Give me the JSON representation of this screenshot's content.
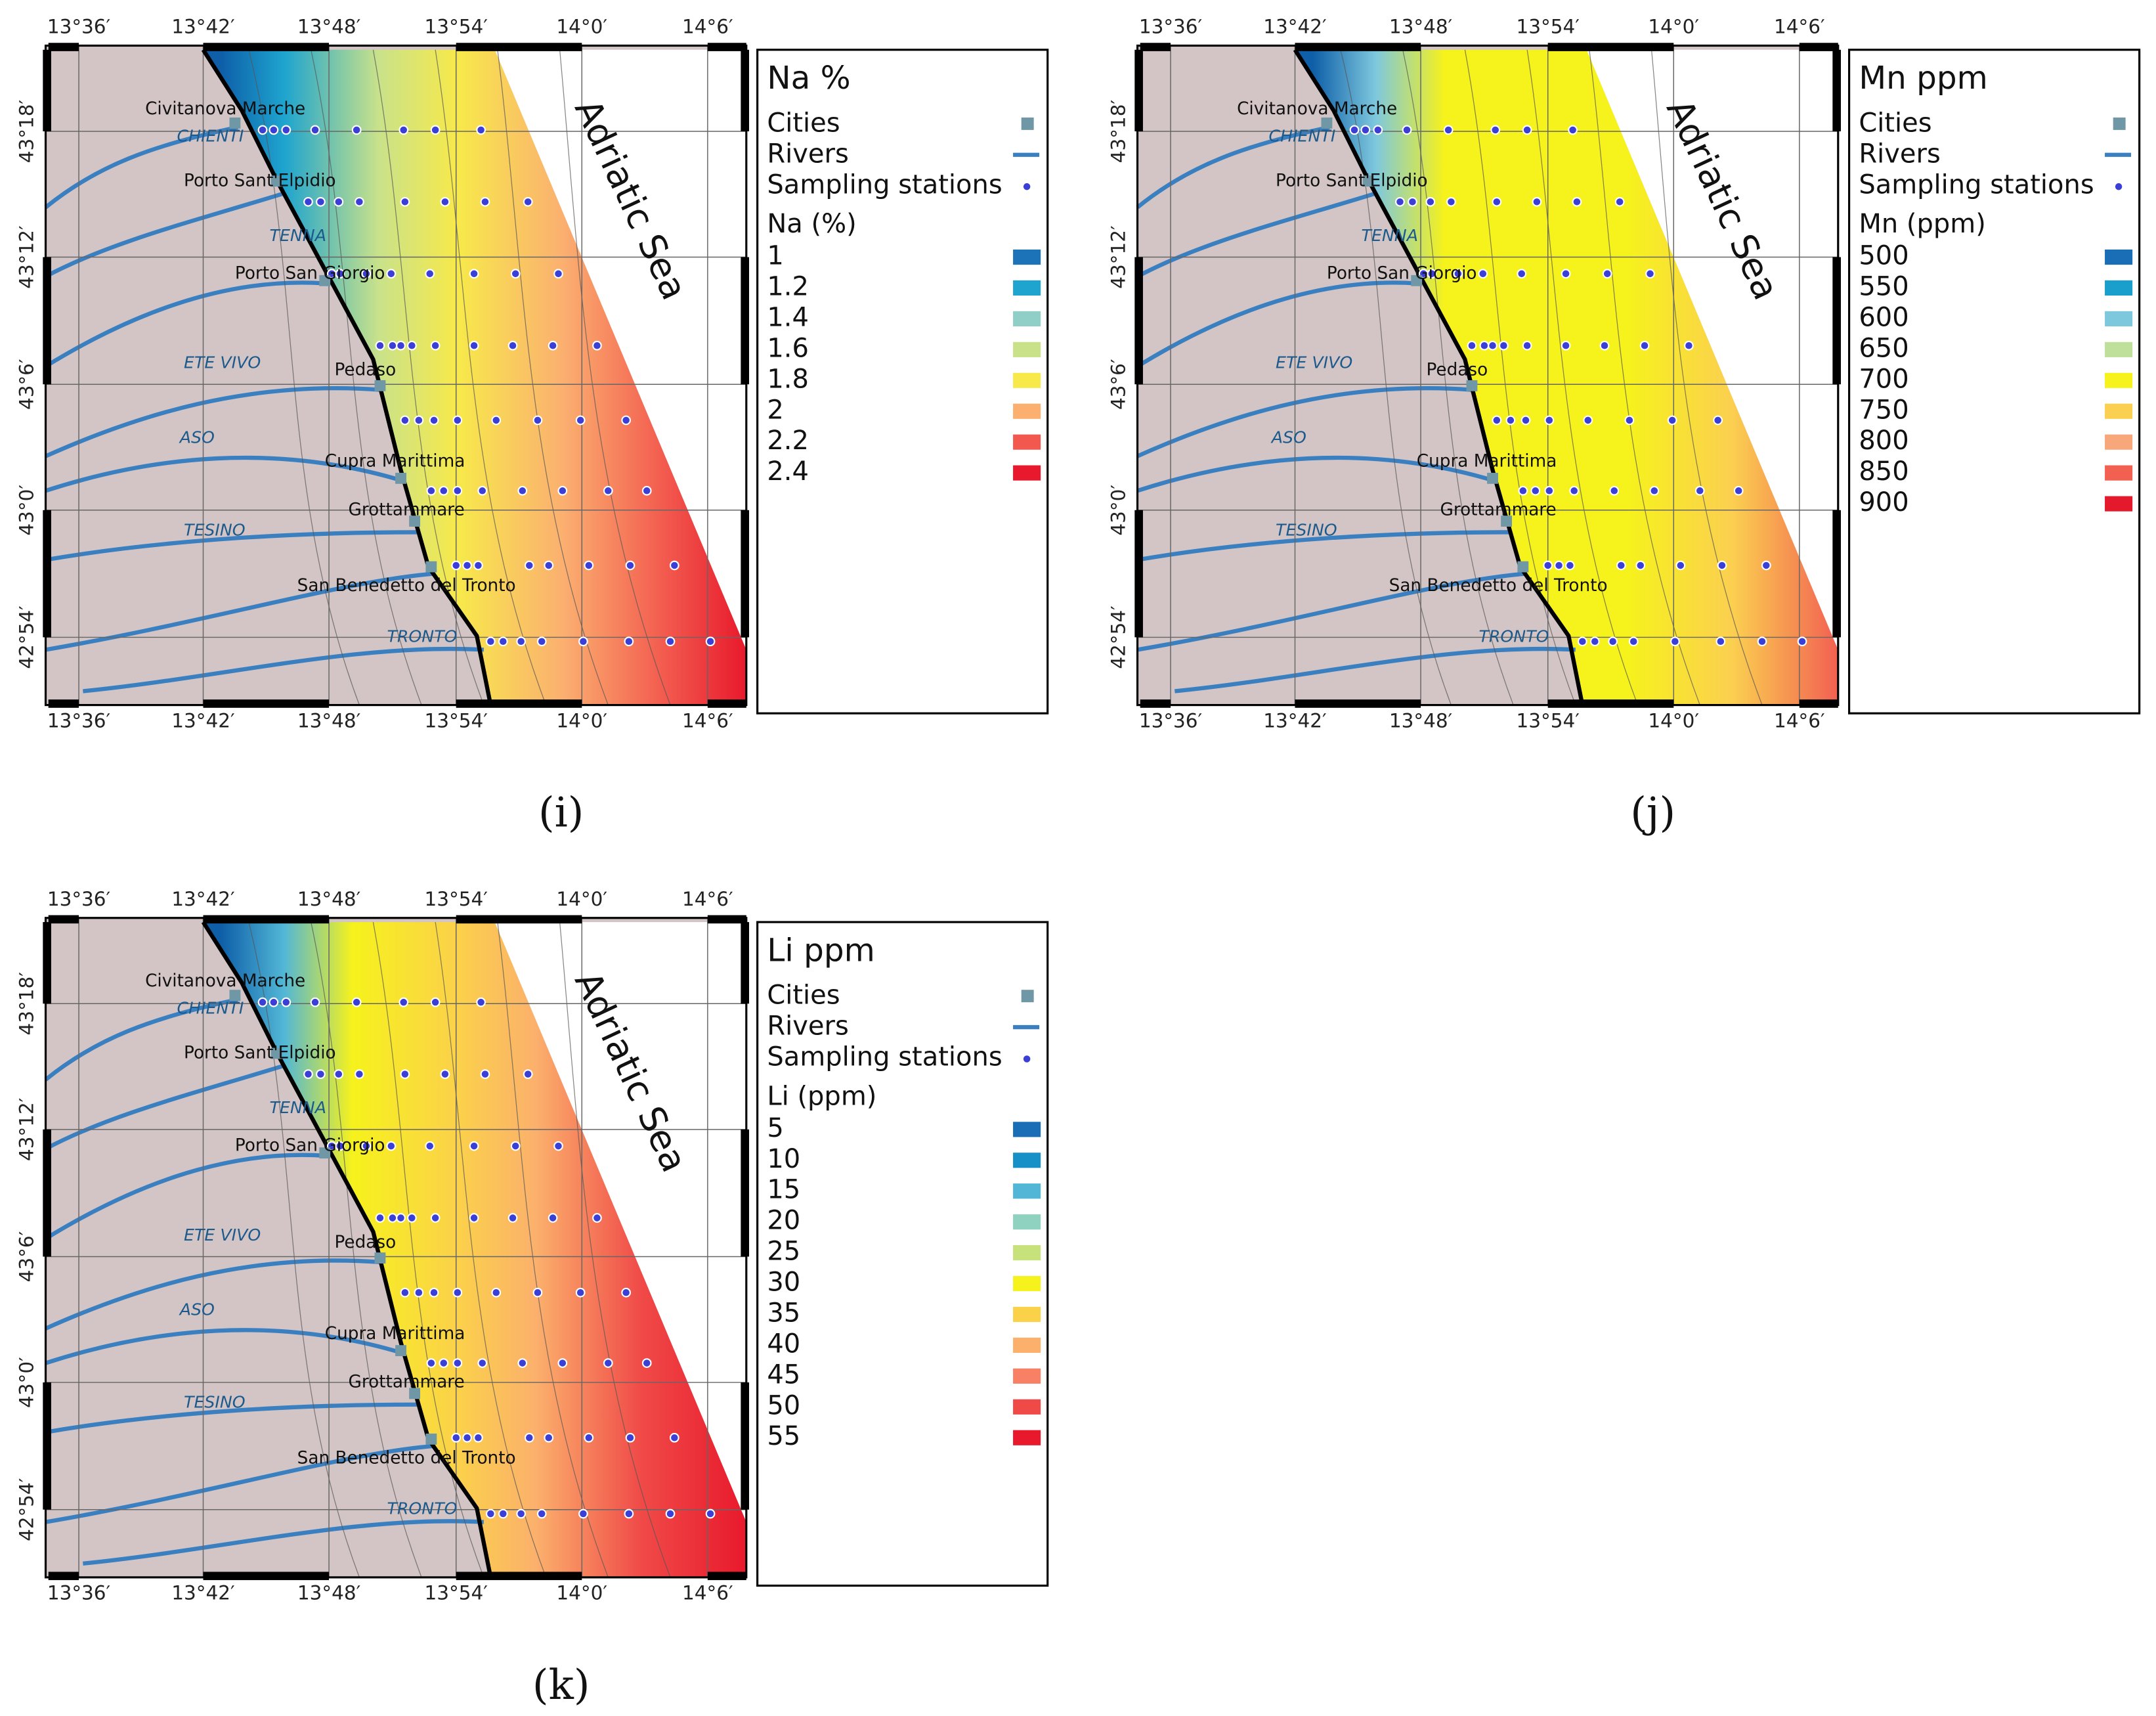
{
  "map": {
    "lon_labels": [
      "13°36′",
      "13°42′",
      "13°48′",
      "13°54′",
      "14°0′",
      "14°6′"
    ],
    "lat_labels": [
      "43°18′",
      "43°12′",
      "43°6′",
      "43°0′",
      "42°54′"
    ],
    "cities": [
      "Civitanova Marche",
      "Porto Sant'Elpidio",
      "Porto San Giorgio",
      "Pedaso",
      "Cupra Marittima",
      "Grottammare",
      "San Benedetto del Tronto"
    ],
    "rivers": [
      "CHIENTI",
      "TENNA",
      "ETE VIVO",
      "ASO",
      "TESINO",
      "TRONTO"
    ],
    "sea_label": "Adriatic Sea"
  },
  "panels": [
    {
      "label": "(i)",
      "legend": {
        "title": "Na %",
        "items": [
          "Cities",
          "Rivers",
          "Sampling stations"
        ],
        "heading": "Na (%)",
        "classes": [
          1,
          1.2,
          1.4,
          1.6,
          1.8,
          2,
          2.2,
          2.4
        ],
        "colors": [
          "#1c73b8",
          "#1ea4cf",
          "#8fcfc8",
          "#c9e28a",
          "#f7e94a",
          "#fbb070",
          "#f2584d",
          "#e8192c"
        ]
      }
    },
    {
      "label": "(j)",
      "legend": {
        "title": "Mn ppm",
        "items": [
          "Cities",
          "Rivers",
          "Sampling stations"
        ],
        "heading": "Mn (ppm)",
        "classes": [
          500,
          550,
          600,
          650,
          700,
          750,
          800,
          850,
          900
        ],
        "colors": [
          "#1a6eb5",
          "#1a9ecb",
          "#7ec8de",
          "#bfe09a",
          "#f6f21c",
          "#fbcf50",
          "#f8a77a",
          "#f26052",
          "#e5192c"
        ]
      }
    },
    {
      "label": "(k)",
      "legend": {
        "title": "Li ppm",
        "items": [
          "Cities",
          "Rivers",
          "Sampling stations"
        ],
        "heading": "Li (ppm)",
        "classes": [
          5,
          10,
          15,
          20,
          25,
          30,
          35,
          40,
          45,
          50,
          55
        ],
        "colors": [
          "#1a6eb5",
          "#1790c8",
          "#52b7d6",
          "#8fd2c0",
          "#c7e27a",
          "#f6f21c",
          "#fbd14a",
          "#fbb06c",
          "#f88065",
          "#f04a48",
          "#e8192c"
        ]
      }
    }
  ]
}
